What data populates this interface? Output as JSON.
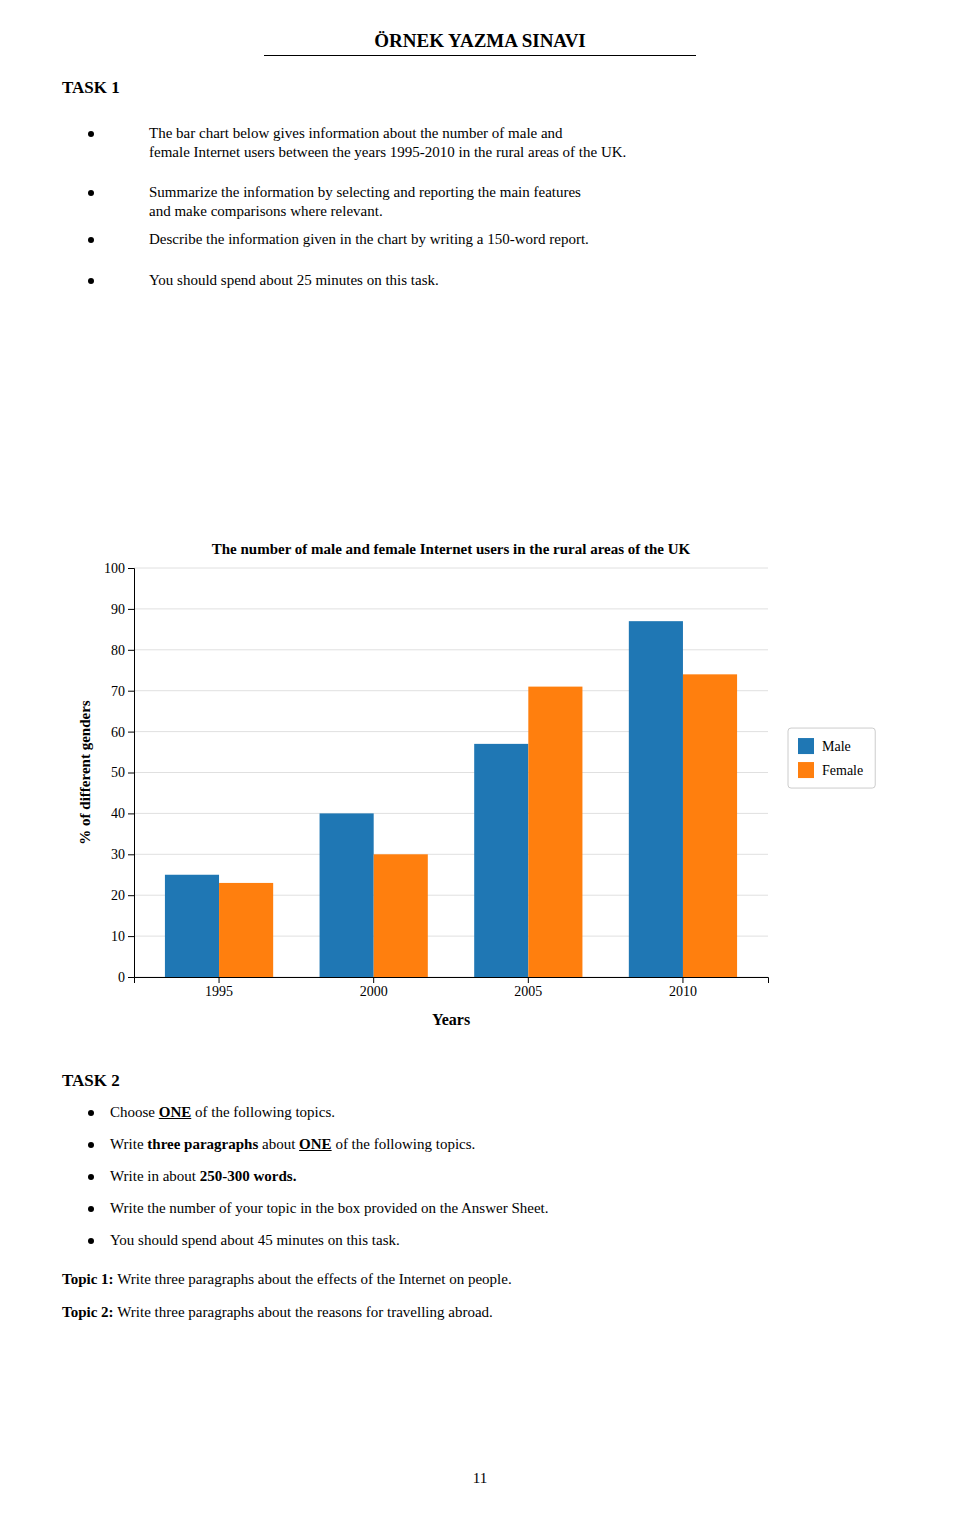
{
  "page": {
    "title": "ÖRNEK YAZMA SINAVI",
    "task1": {
      "heading": "TASK 1",
      "bullets": [
        "The bar chart below gives information about the number of male and\nfemale Internet users between the years 1995-2010 in the rural areas of the UK.",
        "Summarize the information by selecting and reporting the main features\nand make comparisons where relevant.",
        "Describe the information given in the chart by writing a 150-word report.",
        "You should spend about 25 minutes on this task."
      ]
    },
    "task2": {
      "heading": "TASK 2",
      "bullets": [
        [
          {
            "text": "Choose "
          },
          {
            "text": "ONE",
            "bold": true,
            "underline": true
          },
          {
            "text": " of the following topics."
          }
        ],
        [
          {
            "text": "Write "
          },
          {
            "text": "three paragraphs",
            "bold": true
          },
          {
            "text": " about "
          },
          {
            "text": "ONE",
            "bold": true,
            "underline": true
          },
          {
            "text": " of the following topics."
          }
        ],
        [
          {
            "text": "Write in about "
          },
          {
            "text": "250-300 words.",
            "bold": true
          }
        ],
        [
          {
            "text": "Write the number of your topic in the box provided on the Answer Sheet."
          }
        ],
        [
          {
            "text": "You should spend about 45 minutes on this task."
          }
        ]
      ]
    },
    "topics": [
      {
        "label": "Topic 1: ",
        "text": "Write three paragraphs about the effects of the Internet on people."
      },
      {
        "label": "Topic 2: ",
        "text": "Write three paragraphs about the reasons for travelling abroad."
      }
    ],
    "page_number": "11"
  },
  "chart_data": {
    "type": "bar",
    "title": "The number of male and female Internet users in the rural areas of the UK",
    "categories": [
      "1995",
      "2000",
      "2005",
      "2010"
    ],
    "series": [
      {
        "name": "Male",
        "values": [
          25,
          40,
          57,
          87
        ]
      },
      {
        "name": "Female",
        "values": [
          23,
          30,
          71,
          74
        ]
      }
    ],
    "x_label": "Years",
    "y_label": "% of different genders",
    "ylim": [
      0,
      100
    ],
    "yticks": [
      0,
      10,
      20,
      30,
      40,
      50,
      60,
      70,
      80,
      90,
      100
    ],
    "grid": true,
    "legend": "right"
  }
}
